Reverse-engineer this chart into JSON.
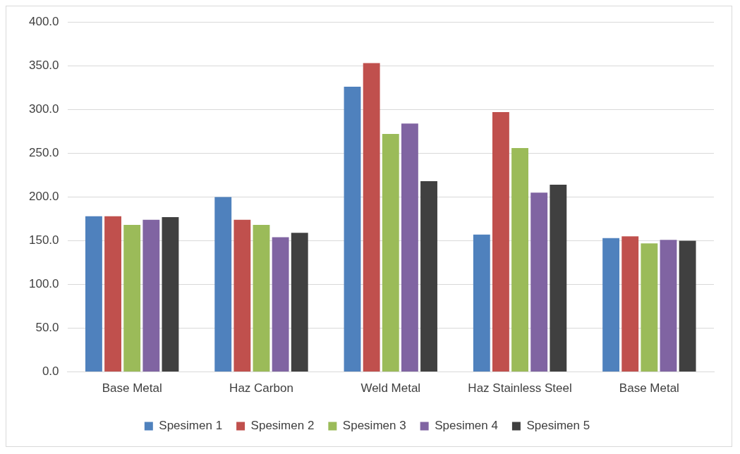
{
  "chart_data": {
    "type": "bar",
    "categories": [
      "Base Metal",
      "Haz Carbon",
      "Weld Metal",
      "Haz Stainless Steel",
      "Base Metal"
    ],
    "series": [
      {
        "name": "Spesimen 1",
        "color": "#4f81bd",
        "values": [
          178,
          200,
          326,
          157,
          153
        ]
      },
      {
        "name": "Spesimen 2",
        "color": "#c0504d",
        "values": [
          178,
          174,
          353,
          297,
          155
        ]
      },
      {
        "name": "Spesimen 3",
        "color": "#9bbb59",
        "values": [
          168,
          168,
          272,
          256,
          147
        ]
      },
      {
        "name": "Spesimen 4",
        "color": "#8064a2",
        "values": [
          174,
          154,
          284,
          205,
          151
        ]
      },
      {
        "name": "Spesimen 5",
        "color": "#404040",
        "values": [
          177,
          159,
          218,
          214,
          150
        ]
      }
    ],
    "ylim": [
      0,
      400
    ],
    "yticks": [
      {
        "value": 0,
        "label": "0.0"
      },
      {
        "value": 50,
        "label": "50.0"
      },
      {
        "value": 100,
        "label": "100.0"
      },
      {
        "value": 150,
        "label": "150.0"
      },
      {
        "value": 200,
        "label": "200.0"
      },
      {
        "value": 250,
        "label": "250.0"
      },
      {
        "value": 300,
        "label": "300.0"
      },
      {
        "value": 350,
        "label": "350.0"
      },
      {
        "value": 400,
        "label": "400.0"
      }
    ],
    "grid": "y",
    "legend": "bottom"
  }
}
